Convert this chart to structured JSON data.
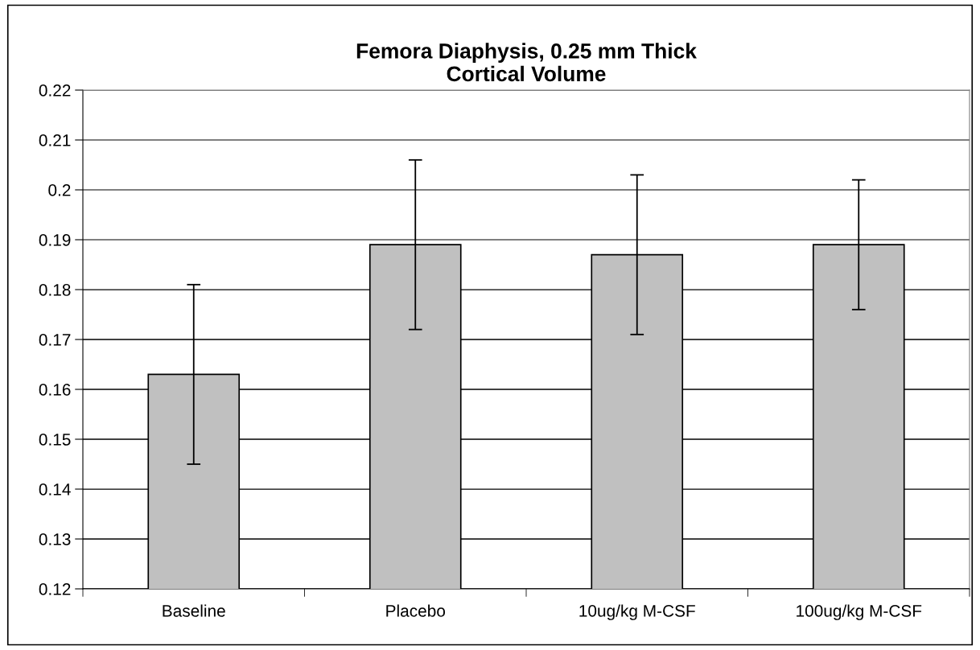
{
  "chart_data": {
    "type": "bar",
    "title": "Femora Diaphysis, 0.25 mm Thick\nCortical Volume",
    "categories": [
      "Baseline",
      "Placebo",
      "10ug/kg M-CSF",
      "100ug/kg M-CSF"
    ],
    "values": [
      0.163,
      0.189,
      0.187,
      0.189
    ],
    "errors": [
      [
        0.145,
        0.181
      ],
      [
        0.172,
        0.206
      ],
      [
        0.171,
        0.203
      ],
      [
        0.176,
        0.202
      ]
    ],
    "color": "#c0c0c0",
    "ylim": [
      0.12,
      0.22
    ],
    "yticks": [
      0.12,
      0.13,
      0.14,
      0.15,
      0.16,
      0.17,
      0.18,
      0.19,
      0.2,
      0.21,
      0.22
    ],
    "grid": "y",
    "legend": false
  }
}
